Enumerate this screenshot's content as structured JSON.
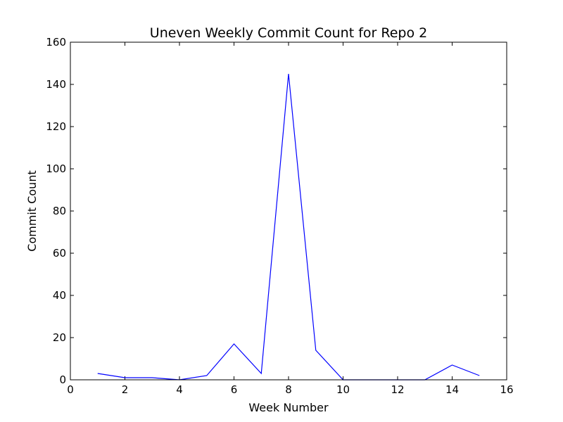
{
  "chart_data": {
    "type": "line",
    "title": "Uneven Weekly Commit Count for Repo 2",
    "xlabel": "Week Number",
    "ylabel": "Commit Count",
    "xlim": [
      0,
      16
    ],
    "ylim": [
      0,
      160
    ],
    "xticks": [
      0,
      2,
      4,
      6,
      8,
      10,
      12,
      14,
      16
    ],
    "yticks": [
      0,
      20,
      40,
      60,
      80,
      100,
      120,
      140,
      160
    ],
    "grid": false,
    "legend": "none",
    "series": [
      {
        "color": "#0000ff",
        "x": [
          1,
          2,
          3,
          4,
          5,
          6,
          7,
          8,
          9,
          10,
          11,
          12,
          13,
          14,
          15
        ],
        "y": [
          3,
          1,
          1,
          0,
          2,
          17,
          3,
          145,
          14,
          0,
          0,
          0,
          0,
          7,
          2
        ]
      }
    ]
  }
}
